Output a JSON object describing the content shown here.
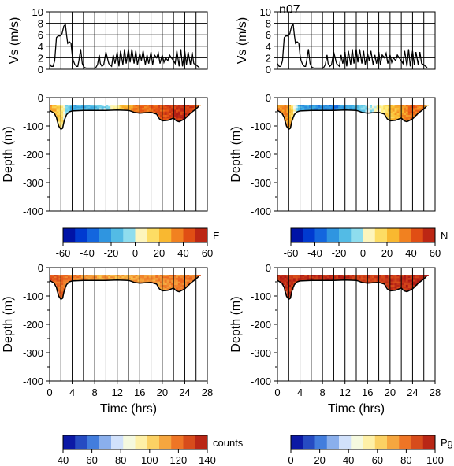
{
  "chart_data": [
    {
      "id": "speed-left",
      "type": "line",
      "ylabel": "Vs (m/s)",
      "title": "",
      "xlim": [
        0,
        28
      ],
      "ylim": [
        0,
        10
      ],
      "yticks": [
        0,
        2,
        4,
        6,
        8,
        10
      ],
      "x": [
        0.0,
        0.3,
        0.6,
        0.9,
        1.2,
        1.5,
        1.8,
        2.0,
        2.2,
        2.5,
        2.8,
        3.0,
        3.2,
        3.5,
        3.8,
        4.0,
        4.2,
        4.5,
        4.8,
        5.0,
        5.2,
        5.5,
        5.8,
        6.0,
        6.2,
        6.5,
        6.8,
        7.0,
        7.2,
        7.5,
        7.8,
        8.0,
        8.2,
        8.5,
        8.8,
        9.0,
        9.3,
        9.6,
        10.0,
        10.5,
        11.0,
        11.3,
        11.6,
        12.0,
        12.3,
        12.6,
        13.0,
        13.3,
        13.6,
        14.0,
        14.3,
        14.6,
        15.0,
        15.3,
        15.6,
        16.0,
        16.3,
        16.6,
        17.0,
        17.3,
        17.6,
        18.0,
        18.3,
        18.6,
        19.0,
        19.3,
        19.6,
        20.0,
        20.3,
        20.6,
        21.0,
        21.3,
        21.6,
        22.0,
        22.3,
        22.6,
        23.0,
        23.3,
        23.6,
        24.0,
        24.3,
        24.6,
        25.0,
        25.3,
        25.6,
        26.0,
        26.3,
        26.6
      ],
      "values": [
        1.0,
        0.5,
        0.5,
        1.5,
        5.5,
        5.8,
        5.8,
        6.0,
        6.2,
        7.5,
        7.8,
        6.0,
        4.5,
        4.8,
        4.5,
        2.5,
        1.5,
        0.8,
        0.5,
        0.5,
        1.5,
        3.5,
        1.0,
        0.5,
        0.3,
        0.2,
        0.2,
        0.2,
        0.2,
        0.2,
        0.2,
        0.2,
        0.3,
        0.8,
        2.5,
        1.0,
        0.5,
        0.8,
        3.0,
        1.0,
        0.5,
        2.5,
        1.0,
        3.0,
        0.5,
        3.2,
        0.8,
        3.5,
        1.0,
        3.5,
        1.2,
        3.5,
        1.0,
        3.2,
        0.8,
        2.8,
        1.5,
        3.2,
        0.8,
        2.5,
        1.0,
        3.0,
        0.8,
        2.5,
        2.0,
        2.8,
        1.0,
        2.5,
        1.2,
        2.0,
        1.5,
        2.5,
        2.0,
        1.5,
        1.0,
        3.2,
        0.5,
        3.5,
        0.5,
        3.2,
        0.8,
        3.0,
        0.8,
        3.0,
        1.0,
        0.8,
        0.5,
        0.3
      ]
    },
    {
      "id": "speed-right",
      "type": "line",
      "ylabel": "Vs (m/s)",
      "title": "n07",
      "xlim": [
        0,
        28
      ],
      "ylim": [
        0,
        10
      ],
      "yticks": [
        0,
        2,
        4,
        6,
        8,
        10
      ],
      "x": [
        0.0,
        0.3,
        0.6,
        0.9,
        1.2,
        1.5,
        1.8,
        2.0,
        2.2,
        2.5,
        2.8,
        3.0,
        3.2,
        3.5,
        3.8,
        4.0,
        4.2,
        4.5,
        4.8,
        5.0,
        5.2,
        5.5,
        5.8,
        6.0,
        6.2,
        6.5,
        6.8,
        7.0,
        7.2,
        7.5,
        7.8,
        8.0,
        8.2,
        8.5,
        8.8,
        9.0,
        9.3,
        9.6,
        10.0,
        10.5,
        11.0,
        11.3,
        11.6,
        12.0,
        12.3,
        12.6,
        13.0,
        13.3,
        13.6,
        14.0,
        14.3,
        14.6,
        15.0,
        15.3,
        15.6,
        16.0,
        16.3,
        16.6,
        17.0,
        17.3,
        17.6,
        18.0,
        18.3,
        18.6,
        19.0,
        19.3,
        19.6,
        20.0,
        20.3,
        20.6,
        21.0,
        21.3,
        21.6,
        22.0,
        22.3,
        22.6,
        23.0,
        23.3,
        23.6,
        24.0,
        24.3,
        24.6,
        25.0,
        25.3,
        25.6,
        26.0,
        26.3,
        26.6
      ],
      "values": [
        1.0,
        0.5,
        0.5,
        1.5,
        5.5,
        5.8,
        5.8,
        6.0,
        6.2,
        7.5,
        7.8,
        6.0,
        4.5,
        4.8,
        4.5,
        2.5,
        1.5,
        0.8,
        0.5,
        0.5,
        1.5,
        3.5,
        1.0,
        0.5,
        0.3,
        0.2,
        0.2,
        0.2,
        0.2,
        0.2,
        0.2,
        0.2,
        0.3,
        0.8,
        2.5,
        1.0,
        0.5,
        0.8,
        3.0,
        1.0,
        0.5,
        2.5,
        1.0,
        3.0,
        0.5,
        3.2,
        0.8,
        3.5,
        1.0,
        3.5,
        1.2,
        3.5,
        1.0,
        3.2,
        0.8,
        2.8,
        1.5,
        3.2,
        0.8,
        2.5,
        1.0,
        3.0,
        0.8,
        2.5,
        2.0,
        2.8,
        1.0,
        2.5,
        1.2,
        2.0,
        1.5,
        2.5,
        2.0,
        1.5,
        1.0,
        3.2,
        0.5,
        3.5,
        0.5,
        3.2,
        0.8,
        3.0,
        0.8,
        3.0,
        1.0,
        0.8,
        0.5,
        0.3
      ]
    },
    {
      "id": "east-velocity",
      "type": "heatmap",
      "ylabel": "Depth (m)",
      "xlim": [
        0,
        28
      ],
      "ylim": [
        -400,
        0
      ],
      "yticks": [
        -400,
        -300,
        -200,
        -100,
        0
      ],
      "colorbar": {
        "label": "E",
        "ticks": [
          -60,
          -40,
          -20,
          0,
          20,
          40,
          60
        ],
        "range": [
          -60,
          60
        ],
        "palette": "jet"
      },
      "top_depth": -25,
      "bottom_track": {
        "x": [
          0.0,
          0.8,
          1.2,
          1.6,
          2.0,
          2.3,
          2.6,
          3.0,
          3.5,
          4.0,
          6.0,
          8.0,
          10.0,
          12.0,
          14.0,
          14.5,
          15.0,
          16.0,
          17.0,
          18.0,
          19.0,
          19.5,
          20.0,
          21.0,
          22.0,
          22.5,
          23.0,
          24.0,
          25.0,
          26.0,
          26.5
        ],
        "depth": [
          -45,
          -55,
          -70,
          -100,
          -112,
          -108,
          -80,
          -60,
          -50,
          -47,
          -45,
          -45,
          -45,
          -44,
          -45,
          -48,
          -52,
          -55,
          -53,
          -52,
          -58,
          -75,
          -82,
          -80,
          -72,
          -82,
          -85,
          -75,
          -55,
          -40,
          -30
        ]
      },
      "keyframes": {
        "x": [
          0,
          2,
          4,
          7,
          10,
          13,
          15,
          18,
          20,
          22,
          24,
          26.5
        ],
        "values": [
          30,
          15,
          -20,
          -15,
          -5,
          20,
          35,
          40,
          45,
          50,
          55,
          40
        ]
      }
    },
    {
      "id": "north-velocity",
      "type": "heatmap",
      "ylabel": "Depth (m)",
      "xlim": [
        0,
        28
      ],
      "ylim": [
        -400,
        0
      ],
      "yticks": [
        -400,
        -300,
        -200,
        -100,
        0
      ],
      "colorbar": {
        "label": "N",
        "ticks": [
          -60,
          -40,
          -20,
          0,
          20,
          40,
          60
        ],
        "range": [
          -60,
          60
        ],
        "palette": "jet"
      },
      "top_depth": -25,
      "bottom_track": {
        "x": [
          0.0,
          0.8,
          1.2,
          1.6,
          2.0,
          2.3,
          2.6,
          3.0,
          3.5,
          4.0,
          6.0,
          8.0,
          10.0,
          12.0,
          14.0,
          14.5,
          15.0,
          16.0,
          17.0,
          18.0,
          19.0,
          19.5,
          20.0,
          21.0,
          22.0,
          22.5,
          23.0,
          24.0,
          25.0,
          26.0,
          26.5
        ],
        "depth": [
          -45,
          -55,
          -70,
          -100,
          -112,
          -108,
          -80,
          -60,
          -50,
          -47,
          -45,
          -45,
          -45,
          -44,
          -45,
          -48,
          -52,
          -55,
          -53,
          -52,
          -58,
          -75,
          -82,
          -80,
          -72,
          -82,
          -85,
          -75,
          -55,
          -40,
          -30
        ]
      },
      "keyframes": {
        "x": [
          0,
          2,
          4,
          7,
          10,
          13,
          15,
          18,
          20,
          22,
          24,
          26.5
        ],
        "values": [
          35,
          30,
          -20,
          -25,
          -30,
          -20,
          -10,
          5,
          20,
          30,
          40,
          30
        ]
      }
    },
    {
      "id": "echo-counts",
      "type": "heatmap",
      "ylabel": "Depth (m)",
      "xlabel": "Time (hrs)",
      "xlim": [
        0,
        28
      ],
      "ylim": [
        -400,
        0
      ],
      "xticks": [
        0,
        4,
        8,
        12,
        16,
        20,
        24,
        28
      ],
      "yticks": [
        -400,
        -300,
        -200,
        -100,
        0
      ],
      "colorbar": {
        "label": "counts",
        "ticks": [
          40,
          60,
          80,
          100,
          120,
          140
        ],
        "range": [
          40,
          140
        ],
        "palette": "bwr"
      },
      "top_depth": -25,
      "bottom_track": {
        "x": [
          0.0,
          0.8,
          1.2,
          1.6,
          2.0,
          2.3,
          2.6,
          3.0,
          3.5,
          4.0,
          6.0,
          8.0,
          10.0,
          12.0,
          14.0,
          14.5,
          15.0,
          16.0,
          17.0,
          18.0,
          19.0,
          19.5,
          20.0,
          21.0,
          22.0,
          22.5,
          23.0,
          24.0,
          25.0,
          26.0,
          26.5
        ],
        "depth": [
          -45,
          -55,
          -70,
          -100,
          -112,
          -108,
          -80,
          -60,
          -50,
          -47,
          -45,
          -45,
          -45,
          -44,
          -45,
          -48,
          -52,
          -55,
          -53,
          -52,
          -58,
          -75,
          -82,
          -80,
          -72,
          -82,
          -85,
          -75,
          -55,
          -40,
          -30
        ]
      },
      "keyframes": {
        "x": [
          0,
          4,
          8,
          12,
          16,
          20,
          24,
          26.5
        ],
        "values": [
          125,
          118,
          112,
          110,
          112,
          115,
          118,
          120
        ]
      }
    },
    {
      "id": "percent-good",
      "type": "heatmap",
      "ylabel": "Depth (m)",
      "xlabel": "Time (hrs)",
      "xlim": [
        0,
        28
      ],
      "ylim": [
        -400,
        0
      ],
      "xticks": [
        0,
        4,
        8,
        12,
        16,
        20,
        24,
        28
      ],
      "yticks": [
        -400,
        -300,
        -200,
        -100,
        0
      ],
      "colorbar": {
        "label": "Pg",
        "ticks": [
          0,
          20,
          40,
          60,
          80,
          100
        ],
        "range": [
          0,
          100
        ],
        "palette": "bwr"
      },
      "top_depth": -25,
      "bottom_track": {
        "x": [
          0.0,
          0.8,
          1.2,
          1.6,
          2.0,
          2.3,
          2.6,
          3.0,
          3.5,
          4.0,
          6.0,
          8.0,
          10.0,
          12.0,
          14.0,
          14.5,
          15.0,
          16.0,
          17.0,
          18.0,
          19.0,
          19.5,
          20.0,
          21.0,
          22.0,
          22.5,
          23.0,
          24.0,
          25.0,
          26.0,
          26.5
        ],
        "depth": [
          -45,
          -55,
          -70,
          -100,
          -112,
          -108,
          -80,
          -60,
          -50,
          -47,
          -45,
          -45,
          -45,
          -44,
          -45,
          -48,
          -52,
          -55,
          -53,
          -52,
          -58,
          -75,
          -82,
          -80,
          -72,
          -82,
          -85,
          -75,
          -55,
          -40,
          -30
        ]
      },
      "keyframes": {
        "x": [
          0,
          4,
          8,
          12,
          16,
          20,
          24,
          26.5
        ],
        "values": [
          95,
          92,
          95,
          93,
          90,
          92,
          94,
          95
        ]
      }
    }
  ]
}
